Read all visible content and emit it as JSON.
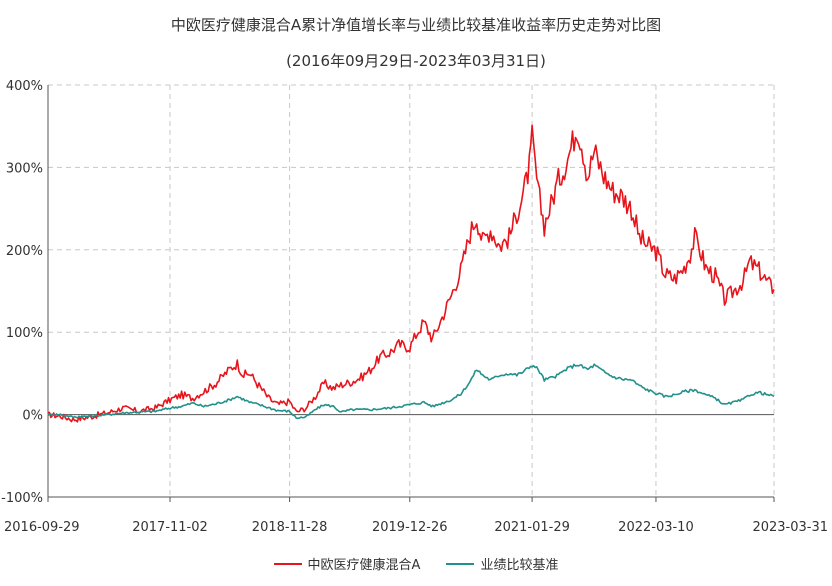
{
  "chart_data": {
    "type": "line",
    "title": "中欧医疗健康混合A累计净值增长率与业绩比较基准收益率历史走势对比图",
    "subtitle": "(2016年09月29日-2023年03月31日)",
    "xlabel": "",
    "ylabel": "",
    "x_start": "2016-09-29",
    "x_end": "2023-03-31",
    "x_ticks": [
      "2016-09-29",
      "2017-11-02",
      "2018-11-28",
      "2019-12-26",
      "2021-01-29",
      "2022-03-10",
      "2023-03-31"
    ],
    "ylim": [
      -100,
      400
    ],
    "y_ticks": [
      -100,
      0,
      100,
      200,
      300,
      400
    ],
    "y_tick_labels": [
      "-100%",
      "0%",
      "100%",
      "200%",
      "300%",
      "400%"
    ],
    "grid": true,
    "legend_position": "bottom-center",
    "series": [
      {
        "name": "中欧医疗健康混合A",
        "color": "#e8141b",
        "points": [
          [
            "2016-09-29",
            0
          ],
          [
            "2016-11-10",
            -2
          ],
          [
            "2016-12-20",
            -6
          ],
          [
            "2017-02-10",
            -3
          ],
          [
            "2017-04-10",
            2
          ],
          [
            "2017-06-01",
            8
          ],
          [
            "2017-07-20",
            4
          ],
          [
            "2017-09-15",
            8
          ],
          [
            "2017-11-02",
            18
          ],
          [
            "2017-12-10",
            24
          ],
          [
            "2018-01-15",
            20
          ],
          [
            "2018-02-20",
            28
          ],
          [
            "2018-04-01",
            38
          ],
          [
            "2018-05-15",
            55
          ],
          [
            "2018-06-10",
            62
          ],
          [
            "2018-07-01",
            48
          ],
          [
            "2018-07-20",
            50
          ],
          [
            "2018-08-20",
            35
          ],
          [
            "2018-09-20",
            20
          ],
          [
            "2018-10-20",
            12
          ],
          [
            "2018-11-28",
            16
          ],
          [
            "2018-12-20",
            3
          ],
          [
            "2019-01-20",
            8
          ],
          [
            "2019-02-20",
            22
          ],
          [
            "2019-03-20",
            38
          ],
          [
            "2019-04-20",
            32
          ],
          [
            "2019-05-15",
            36
          ],
          [
            "2019-06-20",
            40
          ],
          [
            "2019-07-20",
            45
          ],
          [
            "2019-08-20",
            55
          ],
          [
            "2019-09-20",
            70
          ],
          [
            "2019-10-20",
            75
          ],
          [
            "2019-11-20",
            85
          ],
          [
            "2019-12-26",
            82
          ],
          [
            "2020-01-20",
            100
          ],
          [
            "2020-02-10",
            112
          ],
          [
            "2020-03-10",
            92
          ],
          [
            "2020-04-10",
            118
          ],
          [
            "2020-05-10",
            145
          ],
          [
            "2020-06-10",
            175
          ],
          [
            "2020-07-10",
            220
          ],
          [
            "2020-08-01",
            240
          ],
          [
            "2020-08-20",
            210
          ],
          [
            "2020-09-15",
            225
          ],
          [
            "2020-10-15",
            205
          ],
          [
            "2020-11-15",
            215
          ],
          [
            "2020-12-10",
            245
          ],
          [
            "2020-12-31",
            268
          ],
          [
            "2021-01-20",
            300
          ],
          [
            "2021-01-29",
            335
          ],
          [
            "2021-02-18",
            270
          ],
          [
            "2021-03-10",
            230
          ],
          [
            "2021-04-01",
            255
          ],
          [
            "2021-04-20",
            280
          ],
          [
            "2021-05-20",
            305
          ],
          [
            "2021-06-10",
            330
          ],
          [
            "2021-06-25",
            350
          ],
          [
            "2021-07-10",
            330
          ],
          [
            "2021-07-30",
            290
          ],
          [
            "2021-08-20",
            320
          ],
          [
            "2021-09-20",
            290
          ],
          [
            "2021-10-20",
            272
          ],
          [
            "2021-11-20",
            265
          ],
          [
            "2021-12-20",
            250
          ],
          [
            "2022-01-15",
            215
          ],
          [
            "2022-02-10",
            205
          ],
          [
            "2022-03-10",
            198
          ],
          [
            "2022-04-10",
            170
          ],
          [
            "2022-05-10",
            165
          ],
          [
            "2022-06-10",
            178
          ],
          [
            "2022-06-30",
            195
          ],
          [
            "2022-07-15",
            215
          ],
          [
            "2022-08-01",
            200
          ],
          [
            "2022-08-20",
            178
          ],
          [
            "2022-09-20",
            168
          ],
          [
            "2022-10-20",
            140
          ],
          [
            "2022-11-20",
            150
          ],
          [
            "2022-12-20",
            162
          ],
          [
            "2023-01-10",
            185
          ],
          [
            "2023-02-10",
            175
          ],
          [
            "2023-03-10",
            160
          ],
          [
            "2023-03-31",
            152
          ]
        ]
      },
      {
        "name": "业绩比较基准",
        "color": "#21918c",
        "points": [
          [
            "2016-09-29",
            0
          ],
          [
            "2016-11-10",
            0
          ],
          [
            "2016-12-20",
            -3
          ],
          [
            "2017-02-10",
            -2
          ],
          [
            "2017-04-10",
            0
          ],
          [
            "2017-06-01",
            2
          ],
          [
            "2017-07-20",
            3
          ],
          [
            "2017-09-15",
            4
          ],
          [
            "2017-11-02",
            8
          ],
          [
            "2017-12-10",
            10
          ],
          [
            "2018-01-15",
            14
          ],
          [
            "2018-02-20",
            10
          ],
          [
            "2018-04-01",
            13
          ],
          [
            "2018-05-15",
            18
          ],
          [
            "2018-06-10",
            22
          ],
          [
            "2018-07-20",
            15
          ],
          [
            "2018-08-20",
            12
          ],
          [
            "2018-10-20",
            5
          ],
          [
            "2018-11-28",
            4
          ],
          [
            "2018-12-20",
            -4
          ],
          [
            "2019-01-20",
            -3
          ],
          [
            "2019-02-20",
            6
          ],
          [
            "2019-03-20",
            12
          ],
          [
            "2019-04-20",
            10
          ],
          [
            "2019-05-15",
            3
          ],
          [
            "2019-06-20",
            6
          ],
          [
            "2019-08-20",
            6
          ],
          [
            "2019-10-20",
            8
          ],
          [
            "2019-12-26",
            12
          ],
          [
            "2020-02-10",
            15
          ],
          [
            "2020-03-10",
            10
          ],
          [
            "2020-04-10",
            14
          ],
          [
            "2020-05-10",
            18
          ],
          [
            "2020-06-10",
            25
          ],
          [
            "2020-07-10",
            40
          ],
          [
            "2020-08-01",
            55
          ],
          [
            "2020-08-20",
            48
          ],
          [
            "2020-09-15",
            42
          ],
          [
            "2020-10-15",
            48
          ],
          [
            "2020-11-15",
            50
          ],
          [
            "2020-12-10",
            48
          ],
          [
            "2020-12-31",
            52
          ],
          [
            "2021-01-29",
            60
          ],
          [
            "2021-02-18",
            55
          ],
          [
            "2021-03-10",
            42
          ],
          [
            "2021-04-20",
            47
          ],
          [
            "2021-05-20",
            55
          ],
          [
            "2021-06-25",
            61
          ],
          [
            "2021-07-30",
            55
          ],
          [
            "2021-08-20",
            60
          ],
          [
            "2021-09-20",
            52
          ],
          [
            "2021-10-20",
            46
          ],
          [
            "2021-11-20",
            43
          ],
          [
            "2021-12-20",
            42
          ],
          [
            "2022-01-15",
            35
          ],
          [
            "2022-02-10",
            30
          ],
          [
            "2022-03-10",
            26
          ],
          [
            "2022-04-10",
            22
          ],
          [
            "2022-05-10",
            24
          ],
          [
            "2022-06-10",
            28
          ],
          [
            "2022-07-15",
            30
          ],
          [
            "2022-08-20",
            24
          ],
          [
            "2022-09-20",
            20
          ],
          [
            "2022-10-20",
            12
          ],
          [
            "2022-11-20",
            15
          ],
          [
            "2022-12-20",
            18
          ],
          [
            "2023-01-10",
            24
          ],
          [
            "2023-02-10",
            27
          ],
          [
            "2023-03-10",
            24
          ],
          [
            "2023-03-31",
            22
          ]
        ]
      }
    ]
  }
}
